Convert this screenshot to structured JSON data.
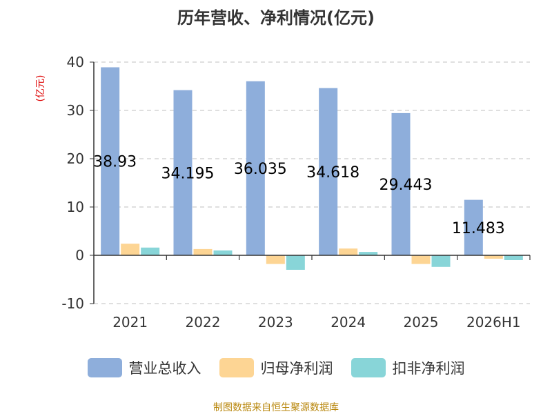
{
  "chart_data": {
    "type": "bar",
    "title": "历年营收、净利情况(亿元)",
    "ylabel": "(亿元)",
    "xlabel": "",
    "categories": [
      "2021",
      "2022",
      "2023",
      "2024",
      "2025",
      "2026H1"
    ],
    "ylim": [
      -10,
      40
    ],
    "yticks": [
      "40",
      "30",
      "20",
      "10",
      "0",
      "-10"
    ],
    "grid": true,
    "legend_position": "bottom",
    "series": [
      {
        "name": "营业总收入",
        "color": "#8eaedb",
        "values": [
          38.93,
          34.195,
          36.035,
          34.618,
          29.443,
          11.483
        ],
        "labels": [
          "38.93",
          "34.195",
          "36.035",
          "34.618",
          "29.443",
          "11.483"
        ]
      },
      {
        "name": "归母净利润",
        "color": "#fdd594",
        "values": [
          2.4,
          1.3,
          -1.8,
          1.4,
          -1.8,
          -0.7
        ]
      },
      {
        "name": "扣非净利润",
        "color": "#88d5d8",
        "values": [
          1.6,
          1.0,
          -3.0,
          0.7,
          -2.4,
          -1.0
        ]
      }
    ],
    "source": "制图数据来自恒生聚源数据库"
  }
}
